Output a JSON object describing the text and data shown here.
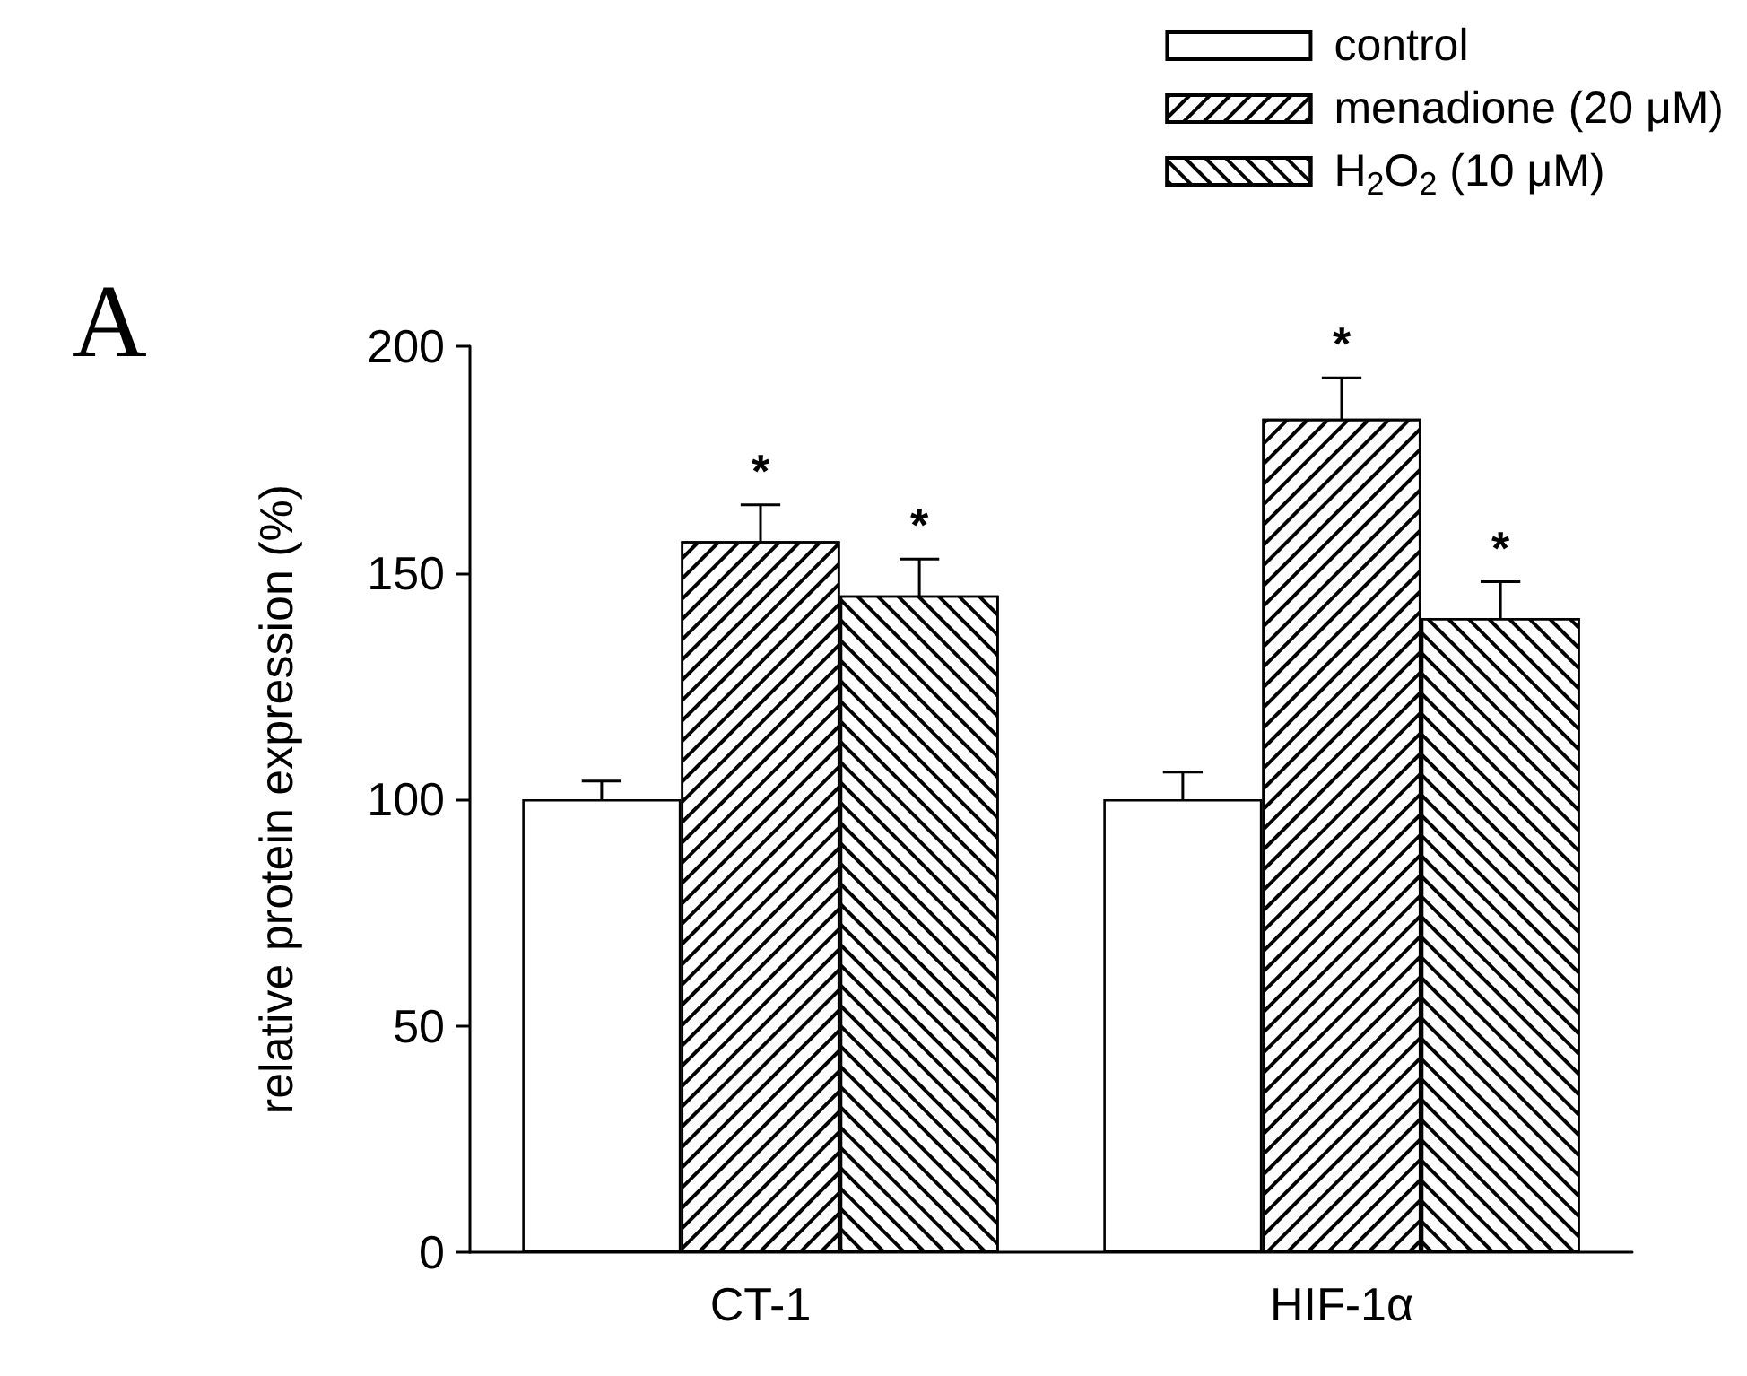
{
  "chart_data": {
    "type": "bar",
    "ylabel": "relative protein expression (%)",
    "categories": [
      "CT-1",
      "HIF-1α"
    ],
    "series": [
      {
        "name": "control",
        "color": "#ffffff",
        "values": [
          100,
          100
        ],
        "errors": [
          4,
          6
        ]
      },
      {
        "name": "menadione (20 μM)",
        "color": "#ffffff",
        "values": [
          157,
          184
        ],
        "errors": [
          8,
          9
        ],
        "value_labels": [
          "*",
          "*"
        ]
      },
      {
        "name": "H$_{2}$O$_{2}$ (10 μM)",
        "color": "#ffffff",
        "values": [
          145,
          140
        ],
        "errors": [
          8,
          8
        ],
        "value_labels": [
          "*",
          "*"
        ]
      }
    ],
    "ylim": [
      0,
      200
    ],
    "yticks": [
      0,
      50,
      100,
      150,
      200
    ],
    "grid": false,
    "legend": "top right",
    "annotations": [
      "A"
    ]
  }
}
